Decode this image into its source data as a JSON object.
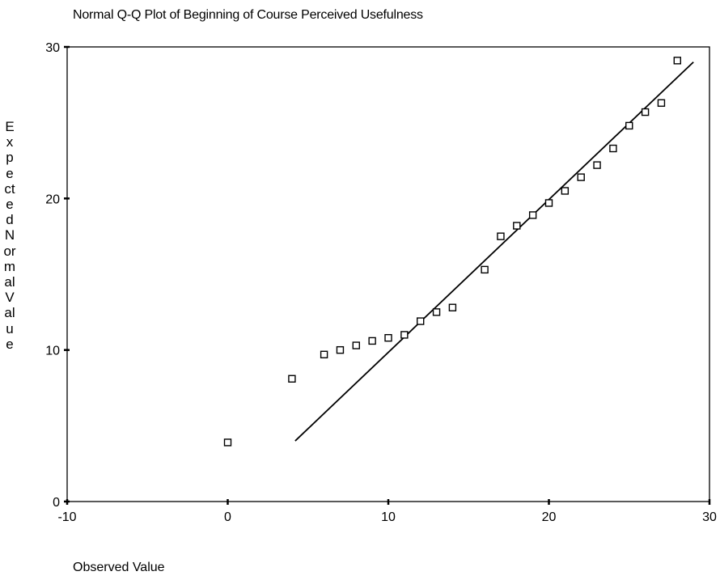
{
  "chart_data": {
    "type": "scatter",
    "title": "Normal Q-Q Plot of Beginning of Course Perceived Usefulness",
    "xlabel": "Observed Value",
    "ylabel": "Expected Normal Value",
    "xlim": [
      -10,
      30
    ],
    "ylim": [
      0,
      30
    ],
    "x_ticks": [
      -10,
      0,
      10,
      20,
      30
    ],
    "y_ticks": [
      0,
      10,
      20,
      30
    ],
    "grid": false,
    "legend": "none",
    "marker": "open-square",
    "points": [
      {
        "x": 0,
        "y": 3.9
      },
      {
        "x": 4,
        "y": 8.1
      },
      {
        "x": 6,
        "y": 9.7
      },
      {
        "x": 7,
        "y": 10.0
      },
      {
        "x": 8,
        "y": 10.3
      },
      {
        "x": 9,
        "y": 10.6
      },
      {
        "x": 10,
        "y": 10.8
      },
      {
        "x": 11,
        "y": 11.0
      },
      {
        "x": 12,
        "y": 11.9
      },
      {
        "x": 13,
        "y": 12.5
      },
      {
        "x": 14,
        "y": 12.8
      },
      {
        "x": 16,
        "y": 15.3
      },
      {
        "x": 17,
        "y": 17.5
      },
      {
        "x": 18,
        "y": 18.2
      },
      {
        "x": 19,
        "y": 18.9
      },
      {
        "x": 20,
        "y": 19.7
      },
      {
        "x": 21,
        "y": 20.5
      },
      {
        "x": 22,
        "y": 21.4
      },
      {
        "x": 23,
        "y": 22.2
      },
      {
        "x": 24,
        "y": 23.3
      },
      {
        "x": 25,
        "y": 24.8
      },
      {
        "x": 26,
        "y": 25.7
      },
      {
        "x": 27,
        "y": 26.3
      },
      {
        "x": 28,
        "y": 29.1
      }
    ],
    "reference_line": {
      "x1": 4.2,
      "y1": 4.0,
      "x2": 29.0,
      "y2": 29.0
    }
  }
}
